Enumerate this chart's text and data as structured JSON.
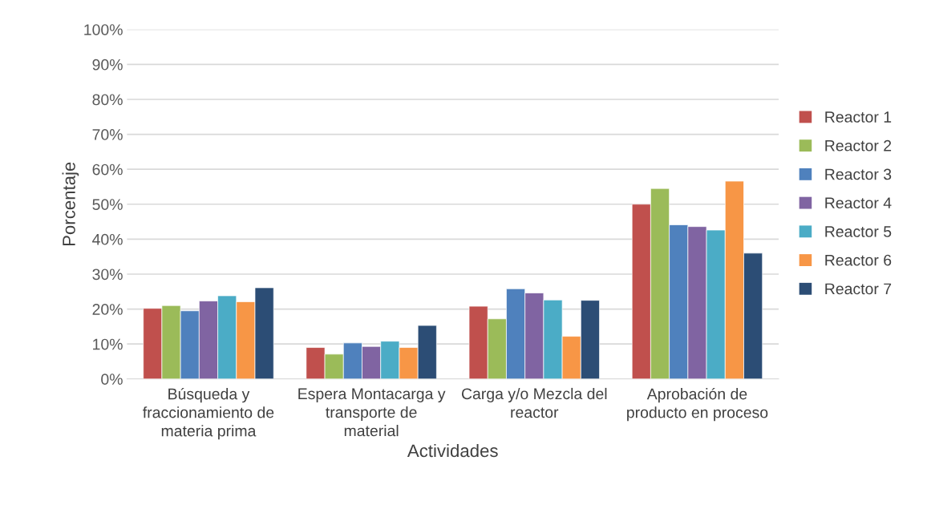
{
  "chart_data": {
    "type": "bar",
    "xlabel": "Actividades",
    "ylabel": "Porcentaje",
    "categories": [
      "Búsqueda y fraccionamiento de materia prima",
      "Espera Montacarga y transporte de material",
      "Carga y/o Mezcla del reactor",
      "Aprobación de producto en proceso"
    ],
    "series": [
      {
        "name": "Reactor 1",
        "color": "#c0504d",
        "values": [
          20.2,
          9.0,
          20.8,
          50.0
        ]
      },
      {
        "name": "Reactor 2",
        "color": "#9bbb59",
        "values": [
          21.0,
          7.1,
          17.2,
          54.5
        ]
      },
      {
        "name": "Reactor 3",
        "color": "#4f81bd",
        "values": [
          19.5,
          10.3,
          25.8,
          44.1
        ]
      },
      {
        "name": "Reactor 4",
        "color": "#8064a2",
        "values": [
          22.3,
          9.3,
          24.6,
          43.6
        ]
      },
      {
        "name": "Reactor 5",
        "color": "#4bacc6",
        "values": [
          23.8,
          10.8,
          22.6,
          42.6
        ]
      },
      {
        "name": "Reactor 6",
        "color": "#f79646",
        "values": [
          22.1,
          9.0,
          12.2,
          56.6
        ]
      },
      {
        "name": "Reactor 7",
        "color": "#2c4d75",
        "values": [
          26.1,
          15.3,
          22.5,
          36.0
        ]
      }
    ],
    "ylim": [
      0,
      100
    ],
    "yticks": [
      {
        "value": 0,
        "label": "0%"
      },
      {
        "value": 10,
        "label": "10%"
      },
      {
        "value": 20,
        "label": "20%"
      },
      {
        "value": 30,
        "label": "30%"
      },
      {
        "value": 40,
        "label": "40%"
      },
      {
        "value": 50,
        "label": "50%"
      },
      {
        "value": 60,
        "label": "60%"
      },
      {
        "value": 70,
        "label": "70%"
      },
      {
        "value": 80,
        "label": "80%"
      },
      {
        "value": 90,
        "label": "90%"
      },
      {
        "value": 100,
        "label": "100%"
      }
    ],
    "grid": "y",
    "legend": "right"
  }
}
